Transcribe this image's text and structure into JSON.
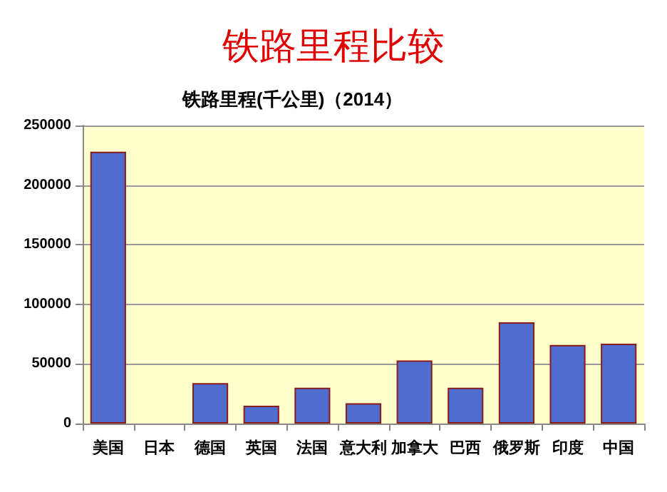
{
  "chart_data": {
    "type": "bar",
    "title": "铁路里程比较",
    "subtitle": "铁路里程(千公里)（2014）",
    "categories": [
      "美国",
      "日本",
      "德国",
      "英国",
      "法国",
      "意大利",
      "加拿大",
      "巴西",
      "俄罗斯",
      "印度",
      "中国"
    ],
    "values": [
      228000,
      null,
      34000,
      15000,
      30000,
      17000,
      53000,
      30000,
      85000,
      66000,
      67000
    ],
    "color": "#4f6dcf",
    "ylim": [
      0,
      250000
    ],
    "yticks": [
      0,
      50000,
      100000,
      150000,
      200000,
      250000
    ],
    "grid": "y"
  }
}
